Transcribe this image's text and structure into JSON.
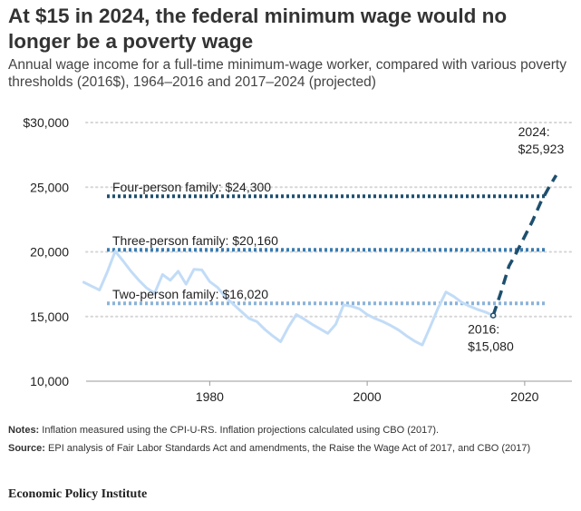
{
  "chart_data": {
    "type": "line",
    "title": "At $15 in 2024, the federal minimum wage would no longer be a poverty wage",
    "subtitle": "Annual wage income for a full-time minimum-wage worker, compared with various poverty thresholds (2016$), 1964–2016 and 2017–2024 (projected)",
    "xlim": [
      1962,
      2026
    ],
    "ylim": [
      10000,
      30000
    ],
    "x_ticks": [
      1980,
      2000,
      2020
    ],
    "x_tick_labels": [
      "1980",
      "2000",
      "2020"
    ],
    "y_ticks": [
      10000,
      15000,
      20000,
      25000,
      30000
    ],
    "y_tick_labels": [
      "10,000",
      "15,000",
      "20,000",
      "25,000",
      "$30,000"
    ],
    "grid": "horizontal-dotted",
    "series": [
      {
        "style": "solid",
        "color": "#c2dcf7",
        "x": [
          1964,
          1965,
          1966,
          1967,
          1968,
          1969,
          1970,
          1971,
          1972,
          1973,
          1974,
          1975,
          1976,
          1977,
          1978,
          1979,
          1980,
          1981,
          1982,
          1983,
          1984,
          1985,
          1986,
          1987,
          1988,
          1989,
          1990,
          1991,
          1992,
          1993,
          1994,
          1995,
          1996,
          1997,
          1998,
          1999,
          2000,
          2001,
          2002,
          2003,
          2004,
          2005,
          2006,
          2007,
          2008,
          2009,
          2010,
          2011,
          2012,
          2013,
          2014,
          2015,
          2016
        ],
        "y": [
          17650,
          17350,
          17050,
          18450,
          20050,
          19300,
          18500,
          17800,
          17200,
          16800,
          18250,
          17800,
          18500,
          17500,
          18650,
          18600,
          17700,
          17250,
          16500,
          15950,
          15400,
          14850,
          14600,
          14000,
          13500,
          13050,
          14200,
          15150,
          14800,
          14400,
          14050,
          13700,
          14400,
          15900,
          15800,
          15600,
          15150,
          14850,
          14600,
          14300,
          13950,
          13500,
          13100,
          12800,
          14200,
          15650,
          16900,
          16550,
          16100,
          15800,
          15550,
          15350,
          15080
        ]
      },
      {
        "style": "dashed",
        "color": "#1d4f6e",
        "x": [
          2016,
          2017,
          2018,
          2019,
          2020,
          2021,
          2022,
          2023,
          2024
        ],
        "y": [
          15080,
          16900,
          18900,
          20000,
          21200,
          22400,
          23800,
          24900,
          25923
        ]
      }
    ],
    "reference_lines": [
      {
        "label": "Four-person family: $24,300",
        "value": 24300,
        "color": "#1d4f6e"
      },
      {
        "label": "Three-person family: $20,160",
        "value": 20160,
        "color": "#3a7bb0"
      },
      {
        "label": "Two-person family: $16,020",
        "value": 16020,
        "color": "#8cb3d9"
      }
    ],
    "annotations": [
      {
        "line1": "2024:",
        "line2": "$25,923",
        "x": 2024,
        "y": 25923
      },
      {
        "line1": "2016:",
        "line2": "$15,080",
        "x": 2016,
        "y": 15080
      }
    ]
  },
  "notes": {
    "notes_label": "Notes:",
    "notes_text": " Inflation measured using the CPI-U-RS. Inflation projections calculated using CBO (2017).",
    "source_label": "Source:",
    "source_text": " EPI analysis of Fair Labor Standards Act and amendments, the Raise the Wage Act of 2017, and CBO (2017)"
  },
  "org_name": "Economic Policy Institute"
}
